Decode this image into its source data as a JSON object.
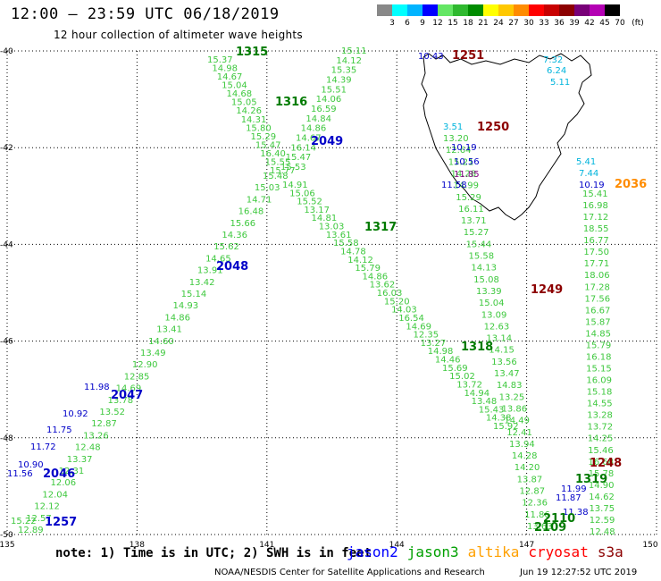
{
  "title": "12:00 – 23:59 UTC 06/18/2019",
  "subtitle": "12 hour collection of altimeter wave heights",
  "scale": {
    "colors": [
      "#888888",
      "#00ffff",
      "#00b4ff",
      "#0000ff",
      "#64e664",
      "#2fb92f",
      "#008c00",
      "#ffff00",
      "#ffc800",
      "#ff8c00",
      "#ff0000",
      "#c80000",
      "#8c0000",
      "#780078",
      "#b400b4",
      "#000000"
    ],
    "labels": [
      "3",
      "6",
      "9",
      "12",
      "15",
      "18",
      "21",
      "24",
      "27",
      "30",
      "33",
      "36",
      "39",
      "42",
      "45",
      "70",
      "(ft)"
    ]
  },
  "axes": {
    "lon_ticks": [
      "135",
      "138",
      "141",
      "144",
      "147",
      "150"
    ],
    "lat_ticks": [
      "-40",
      "-42",
      "-44",
      "-46",
      "-48",
      "-50"
    ]
  },
  "tracks": [
    {
      "id": "1315",
      "mission": "jason3",
      "color": "#007a00"
    },
    {
      "id": "1316",
      "mission": "jason3",
      "color": "#007a00"
    },
    {
      "id": "1317",
      "mission": "jason3",
      "color": "#007a00"
    },
    {
      "id": "1318",
      "mission": "jason3",
      "color": "#007a00"
    },
    {
      "id": "1319",
      "mission": "jason3",
      "color": "#007a00"
    },
    {
      "id": "2109",
      "mission": "jason3",
      "color": "#007a00"
    },
    {
      "id": "2110",
      "mission": "jason3",
      "color": "#007a00"
    },
    {
      "id": "2049",
      "mission": "jason2",
      "color": "#0000c8"
    },
    {
      "id": "2048",
      "mission": "jason2",
      "color": "#0000c8"
    },
    {
      "id": "2047",
      "mission": "jason2",
      "color": "#0000c8"
    },
    {
      "id": "2046",
      "mission": "jason2",
      "color": "#0000c8"
    },
    {
      "id": "1257",
      "mission": "jason2",
      "color": "#0000c8"
    },
    {
      "id": "1251",
      "mission": "cryosat",
      "color": "#8c0000"
    },
    {
      "id": "1250",
      "mission": "cryosat",
      "color": "#8c0000"
    },
    {
      "id": "1249",
      "mission": "cryosat",
      "color": "#8c0000"
    },
    {
      "id": "1248",
      "mission": "cryosat",
      "color": "#8c0000"
    },
    {
      "id": "2036",
      "mission": "altika",
      "color": "#ff8c00"
    }
  ],
  "readings": {
    "nw_track": [
      "15.37",
      "14.98",
      "14.67",
      "15.04",
      "14.68",
      "15.05",
      "14.26",
      "14.31",
      "15.80",
      "15.29",
      "15.47",
      "16.40",
      "15.55",
      "15.77"
    ],
    "ne_track": [
      "15.11",
      "14.12",
      "15.35",
      "14.39",
      "15.51",
      "14.06",
      "16.59",
      "14.84",
      "14.86",
      "14.67",
      "16.14",
      "15.47",
      "15.53"
    ],
    "sw_track": [
      "15.48",
      "15.03",
      "14.71",
      "16.48",
      "15.66",
      "14.36",
      "15.62",
      "14.65",
      "13.91",
      "13.42",
      "15.14",
      "14.93",
      "14.86",
      "13.41",
      "14.60",
      "13.49",
      "12.90",
      "12.85",
      "14.69",
      "13.78",
      "13.52",
      "12.87",
      "13.26",
      "12.48",
      "13.37",
      "12.31",
      "12.06",
      "12.04",
      "12.12",
      "12.57",
      "12.89"
    ],
    "sw_blue": [
      "11.98",
      "10.92",
      "11.75",
      "11.72",
      "10.90",
      "11.56",
      "15.22"
    ],
    "se_track": [
      "14.91",
      "15.06",
      "15.52",
      "13.17",
      "14.81",
      "13.03",
      "13.61",
      "15.58",
      "14.78",
      "14.12",
      "15.79",
      "14.86",
      "13.62",
      "16.03",
      "15.20",
      "14.03",
      "16.54",
      "14.69",
      "12.35",
      "13.27",
      "14.98",
      "14.46",
      "15.69",
      "15.02",
      "13.72",
      "14.94",
      "13.48",
      "15.43",
      "14.38",
      "15.92"
    ],
    "tas_west": [
      "13.20",
      "12.64",
      "15.21",
      "14.28",
      "14.99",
      "15.29",
      "16.11",
      "13.71",
      "15.27",
      "15.44",
      "15.58",
      "14.13",
      "15.08",
      "13.39",
      "15.04",
      "13.09",
      "12.63",
      "13.14",
      "14.15",
      "13.56",
      "13.47",
      "14.83",
      "13.25",
      "13.86",
      "14.49",
      "12.41",
      "13.94",
      "14.28",
      "14.20",
      "13.87",
      "12.87",
      "12.36",
      "11.86",
      "13.63"
    ],
    "tas_cyan": [
      "7.32",
      "6.24",
      "5.11",
      "3.51",
      "5.41",
      "7.44"
    ],
    "tas_blue": [
      "10.43",
      "10.19",
      "10.56",
      "11.58",
      "10.19",
      "11.99",
      "11.87",
      "11.38"
    ],
    "tas_purple": [
      "11.85"
    ],
    "east_track": [
      "15.41",
      "16.98",
      "17.12",
      "18.55",
      "16.77",
      "17.50",
      "17.71",
      "18.06",
      "17.28",
      "17.56",
      "16.67",
      "15.87",
      "14.85",
      "15.79",
      "16.18",
      "15.15",
      "16.09",
      "15.18",
      "14.55",
      "13.28",
      "13.72",
      "14.25",
      "15.46",
      "16.68",
      "15.78",
      "14.90",
      "14.62",
      "13.75",
      "12.59",
      "12.48"
    ]
  },
  "note": "note: 1) Time is in UTC; 2) SWH is in feet",
  "legend": [
    {
      "label": "jason2",
      "color": "#0000ff"
    },
    {
      "label": "jason3",
      "color": "#00a000"
    },
    {
      "label": "altika",
      "color": "#ffa000"
    },
    {
      "label": "cryosat",
      "color": "#ff0000"
    },
    {
      "label": "s3a",
      "color": "#8c0000"
    }
  ],
  "credit": "NOAA/NESDIS Center for Satellite Applications and Research",
  "timestamp": "Jun 19 12:27:52 UTC 2019"
}
